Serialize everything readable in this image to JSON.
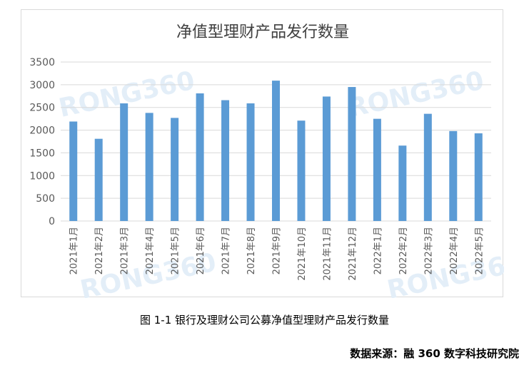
{
  "chart_data": {
    "type": "bar",
    "title": "净值型理财产品发行数量",
    "categories": [
      "2021年1月",
      "2021年2月",
      "2021年3月",
      "2021年4月",
      "2021年5月",
      "2021年6月",
      "2021年7月",
      "2021年8月",
      "2021年9月",
      "2021年10月",
      "2021年11月",
      "2021年12月",
      "2022年1月",
      "2022年2月",
      "2022年3月",
      "2022年4月",
      "2022年5月"
    ],
    "values": [
      2190,
      1810,
      2590,
      2380,
      2270,
      2810,
      2660,
      2590,
      3090,
      2210,
      2740,
      2950,
      2250,
      1660,
      2360,
      1980,
      1930
    ],
    "ylim": [
      0,
      3500
    ],
    "yticks": [
      "0",
      "500",
      "1000",
      "1500",
      "2000",
      "2500",
      "3000",
      "3500"
    ],
    "grid": true,
    "bar_color": "#5b9bd5",
    "watermark": "RONG360"
  },
  "caption": "图 1-1 银行及理财公司公募净值型理财产品发行数量",
  "source": "数据来源：融 360 数字科技研究院"
}
